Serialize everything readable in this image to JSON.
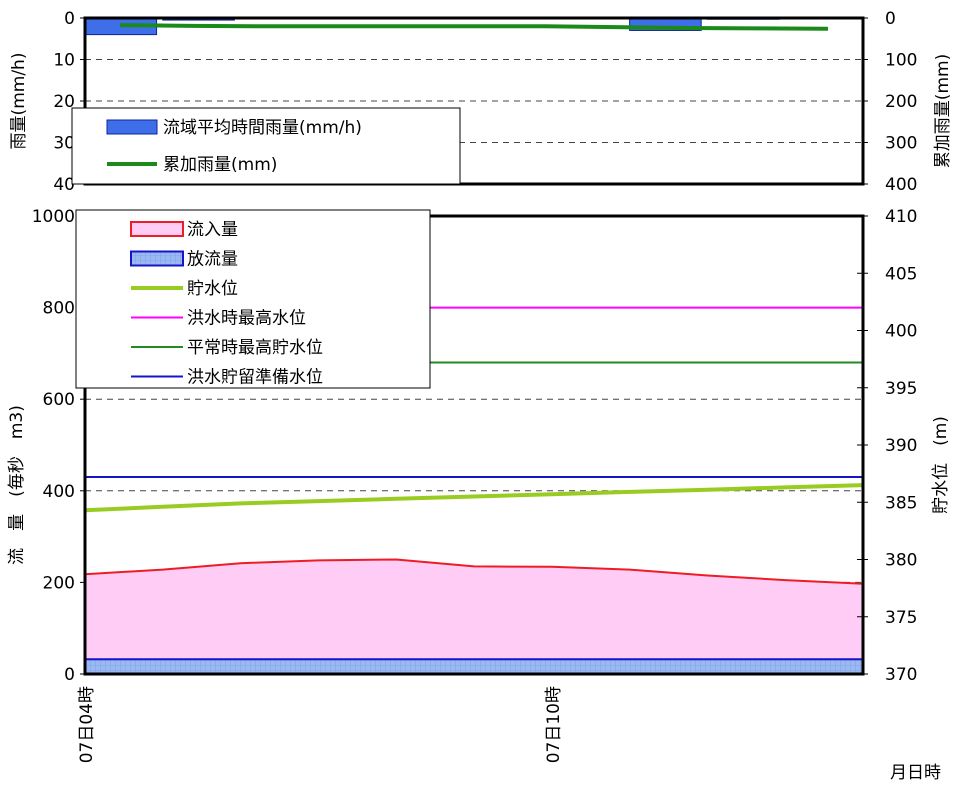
{
  "chart_data": [
    {
      "type": "bar",
      "panel": "rain",
      "ylabel_left": "雨量(mm/h)",
      "ylabel_right": "累加雨量(mm)",
      "ylim_left": [
        0,
        40
      ],
      "ylim_right": [
        0,
        400
      ],
      "y_inverted": true,
      "yticks_left": [
        "0",
        "10",
        "20",
        "30",
        "40"
      ],
      "yticks_right": [
        "0",
        "100",
        "200",
        "300",
        "400"
      ],
      "grid": "dashed-horizontal",
      "legend": [
        "流域平均時間雨量(mm/h)",
        "累加雨量(mm)"
      ],
      "legend_placement": "lower-left",
      "x": [
        "04:00",
        "05:00",
        "06:00",
        "07:00",
        "08:00",
        "09:00",
        "10:00",
        "11:00",
        "12:00",
        "13:00",
        "14:00"
      ],
      "series": [
        {
          "name": "流域平均時間雨量(mm/h)",
          "kind": "bar",
          "axis": "left",
          "color": "#3f6fe8",
          "values": [
            4,
            0.5,
            0,
            0,
            0,
            0,
            0,
            3,
            0.3,
            0.2,
            0.3
          ]
        },
        {
          "name": "累加雨量(mm)",
          "kind": "line",
          "axis": "right",
          "color": "#1a8a1a",
          "values": [
            17,
            19,
            20,
            20,
            20,
            20,
            20,
            22,
            24,
            25,
            26
          ]
        }
      ]
    },
    {
      "type": "area",
      "panel": "flow",
      "ylabel_left": "流　量　(毎秒　m3)",
      "ylabel_right": "貯水位　(m)",
      "xlabel": "月日時",
      "ylim_left": [
        0,
        1000
      ],
      "ylim_right": [
        370,
        410
      ],
      "yticks_left": [
        "0",
        "200",
        "400",
        "600",
        "800",
        "1000"
      ],
      "yticks_right": [
        "370",
        "375",
        "380",
        "385",
        "390",
        "395",
        "400",
        "405",
        "410"
      ],
      "xticks": [
        {
          "label": "07日04時",
          "x": "04:00"
        },
        {
          "label": "07日10時",
          "x": "10:00"
        }
      ],
      "grid": "dashed-horizontal",
      "legend_placement": "top-left",
      "x": [
        "04:00",
        "05:00",
        "06:00",
        "07:00",
        "08:00",
        "09:00",
        "10:00",
        "11:00",
        "12:00",
        "13:00",
        "14:00"
      ],
      "series": [
        {
          "name": "流入量",
          "kind": "area",
          "axis": "left",
          "color": "#ee1c24",
          "fill": "#ffccf5",
          "values": [
            218,
            228,
            242,
            248,
            250,
            235,
            234,
            228,
            215,
            205,
            197
          ]
        },
        {
          "name": "放流量",
          "kind": "area",
          "axis": "left",
          "color": "#1414c8",
          "fill": "#9ab8f2",
          "values": [
            32,
            32,
            32,
            32,
            32,
            32,
            32,
            32,
            32,
            32,
            32
          ]
        },
        {
          "name": "貯水位",
          "kind": "line",
          "axis": "right",
          "color": "#99cc22",
          "values": [
            384.3,
            384.6,
            384.9,
            385.1,
            385.3,
            385.5,
            385.7,
            385.9,
            386.1,
            386.3,
            386.5
          ]
        },
        {
          "name": "洪水時最高水位",
          "kind": "hline",
          "axis": "right",
          "color": "#ff00ff",
          "value": 402
        },
        {
          "name": "平常時最高貯水位",
          "kind": "hline",
          "axis": "right",
          "color": "#228b22",
          "value": 397.2
        },
        {
          "name": "洪水貯留準備水位",
          "kind": "hline",
          "axis": "right",
          "color": "#1414c8",
          "value": 387.2
        }
      ]
    }
  ]
}
